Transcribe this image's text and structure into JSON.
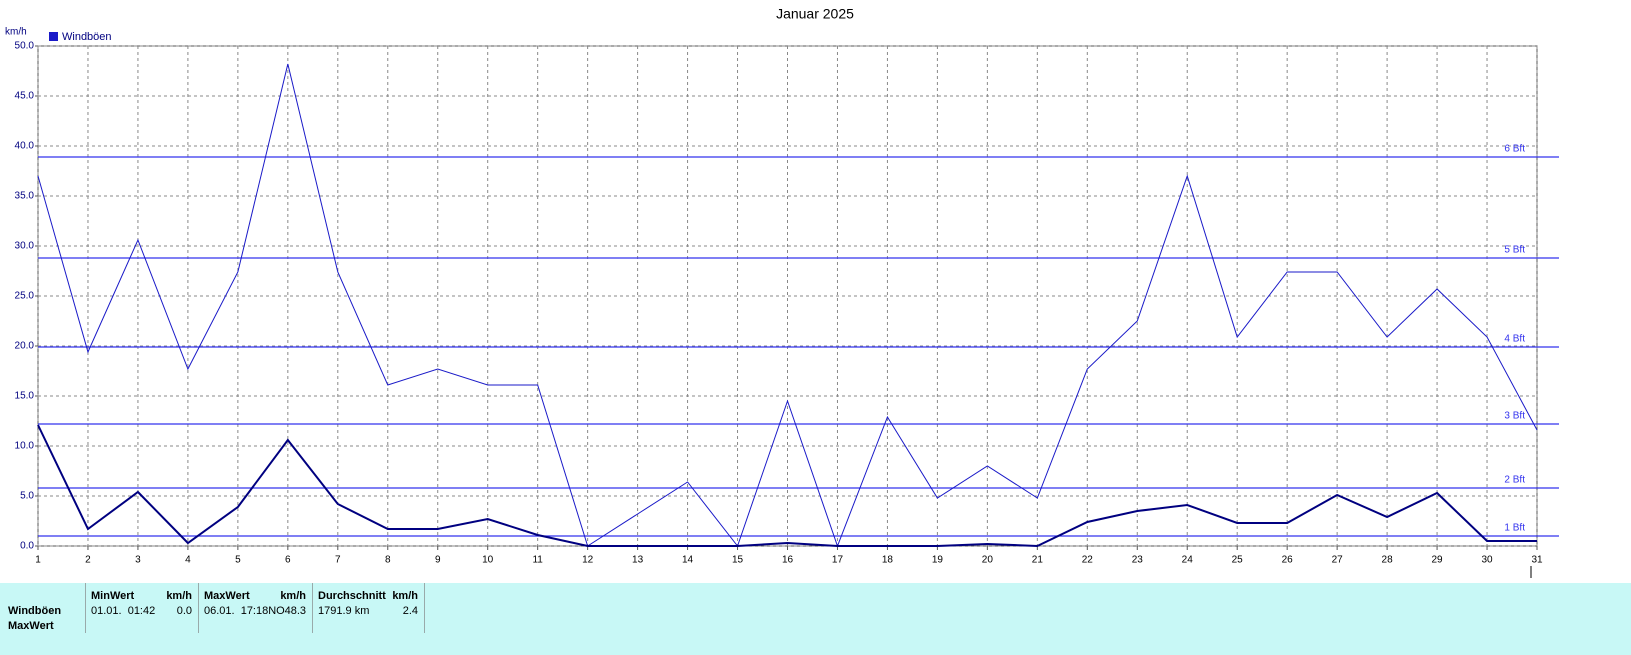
{
  "chart_data": {
    "type": "line",
    "title": "Januar 2025",
    "y_unit": "km/h",
    "x": [
      1,
      2,
      3,
      4,
      5,
      6,
      7,
      8,
      9,
      10,
      11,
      12,
      13,
      14,
      15,
      16,
      17,
      18,
      19,
      20,
      21,
      22,
      23,
      24,
      25,
      26,
      27,
      28,
      29,
      30,
      31
    ],
    "xlim": [
      1,
      31
    ],
    "xticks": [
      1,
      2,
      3,
      4,
      5,
      6,
      7,
      8,
      9,
      10,
      11,
      12,
      13,
      14,
      15,
      16,
      17,
      18,
      19,
      20,
      21,
      22,
      23,
      24,
      25,
      26,
      27,
      28,
      29,
      30,
      31
    ],
    "ylim": [
      0,
      50
    ],
    "yticks": [
      {
        "value": 0,
        "label": "0.0"
      },
      {
        "value": 5,
        "label": "5.0"
      },
      {
        "value": 10,
        "label": "10.0"
      },
      {
        "value": 15,
        "label": "15.0"
      },
      {
        "value": 20,
        "label": "20.0"
      },
      {
        "value": 25,
        "label": "25.0"
      },
      {
        "value": 30,
        "label": "30.0"
      },
      {
        "value": 35,
        "label": "35.0"
      },
      {
        "value": 40,
        "label": "40.0"
      },
      {
        "value": 45,
        "label": "45.0"
      },
      {
        "value": 50,
        "label": "50.0"
      }
    ],
    "grid": true,
    "series": [
      {
        "name": "Windböen",
        "color": "#1a1ac8",
        "width": 1,
        "values": [
          37.0,
          19.4,
          30.6,
          17.7,
          27.4,
          48.2,
          27.4,
          16.1,
          17.7,
          16.1,
          16.1,
          0.0,
          3.2,
          6.4,
          0.0,
          14.5,
          0.0,
          12.9,
          4.8,
          8.0,
          4.8,
          17.7,
          22.5,
          37.0,
          20.9,
          27.4,
          27.4,
          20.9,
          25.7,
          20.9,
          11.6
        ]
      },
      {
        "color": "#000080",
        "width": 2,
        "values": [
          12.1,
          1.7,
          5.4,
          0.3,
          3.9,
          10.6,
          4.2,
          1.7,
          1.7,
          2.7,
          1.1,
          0.0,
          0.0,
          0.0,
          0.0,
          0.3,
          0.0,
          0.0,
          0.0,
          0.2,
          0.0,
          2.4,
          3.5,
          4.1,
          2.3,
          2.3,
          5.1,
          2.9,
          5.3,
          0.5,
          0.5
        ]
      }
    ],
    "reference_lines": [
      {
        "value": 1.0,
        "label": "1 Bft"
      },
      {
        "value": 5.8,
        "label": "2 Bft"
      },
      {
        "value": 12.2,
        "label": "3 Bft"
      },
      {
        "value": 19.9,
        "label": "4 Bft"
      },
      {
        "value": 28.8,
        "label": "5 Bft"
      },
      {
        "value": 38.9,
        "label": "6 Bft"
      }
    ],
    "reference_color": "#3333ee"
  },
  "table": {
    "row_labels": [
      "Windböen",
      "MaxWert"
    ],
    "columns": [
      {
        "header": "MinWert",
        "unit": "km/h",
        "when": "01.01.  01:42",
        "value": "0.0"
      },
      {
        "header": "MaxWert",
        "unit": "km/h",
        "when": "06.01.  17:18NO",
        "value": "48.3"
      },
      {
        "header": "Durchschnitt",
        "unit": "km/h",
        "when": "1791.9 km",
        "value": "2.4"
      }
    ]
  }
}
